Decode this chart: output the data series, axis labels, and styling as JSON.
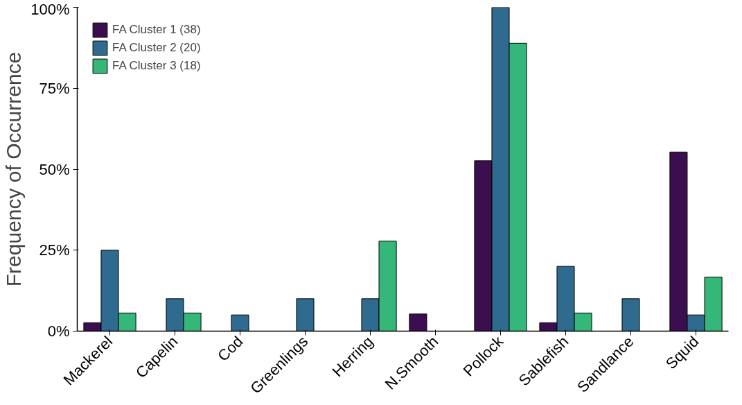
{
  "chart_data": {
    "type": "bar",
    "ylabel": "Frequency of Occurrence",
    "categories": [
      "Mackerel",
      "Capelin",
      "Cod",
      "Greenlings",
      "Herring",
      "N.Smooth",
      "Pollock",
      "Sablefish",
      "Sandlance",
      "Squid"
    ],
    "series": [
      {
        "name": "FA Cluster 1 (38)",
        "color": "#3b0f4f",
        "values": [
          2.6,
          null,
          null,
          null,
          null,
          5.3,
          52.6,
          2.6,
          null,
          55.3
        ]
      },
      {
        "name": "FA Cluster 2 (20)",
        "color": "#2f6b8e",
        "values": [
          25,
          10,
          5,
          10,
          10,
          null,
          100,
          20,
          10,
          5
        ]
      },
      {
        "name": "FA Cluster 3 (18)",
        "color": "#35b779",
        "values": [
          5.6,
          5.6,
          null,
          null,
          27.8,
          null,
          88.9,
          5.6,
          null,
          16.7
        ]
      }
    ],
    "ylim": [
      0,
      100
    ],
    "yticks": [
      {
        "value": 0,
        "label": "0%"
      },
      {
        "value": 25,
        "label": "25%"
      },
      {
        "value": 50,
        "label": "50%"
      },
      {
        "value": 75,
        "label": "75%"
      },
      {
        "value": 100,
        "label": "100%"
      }
    ],
    "grid": false,
    "legend": "top left"
  }
}
